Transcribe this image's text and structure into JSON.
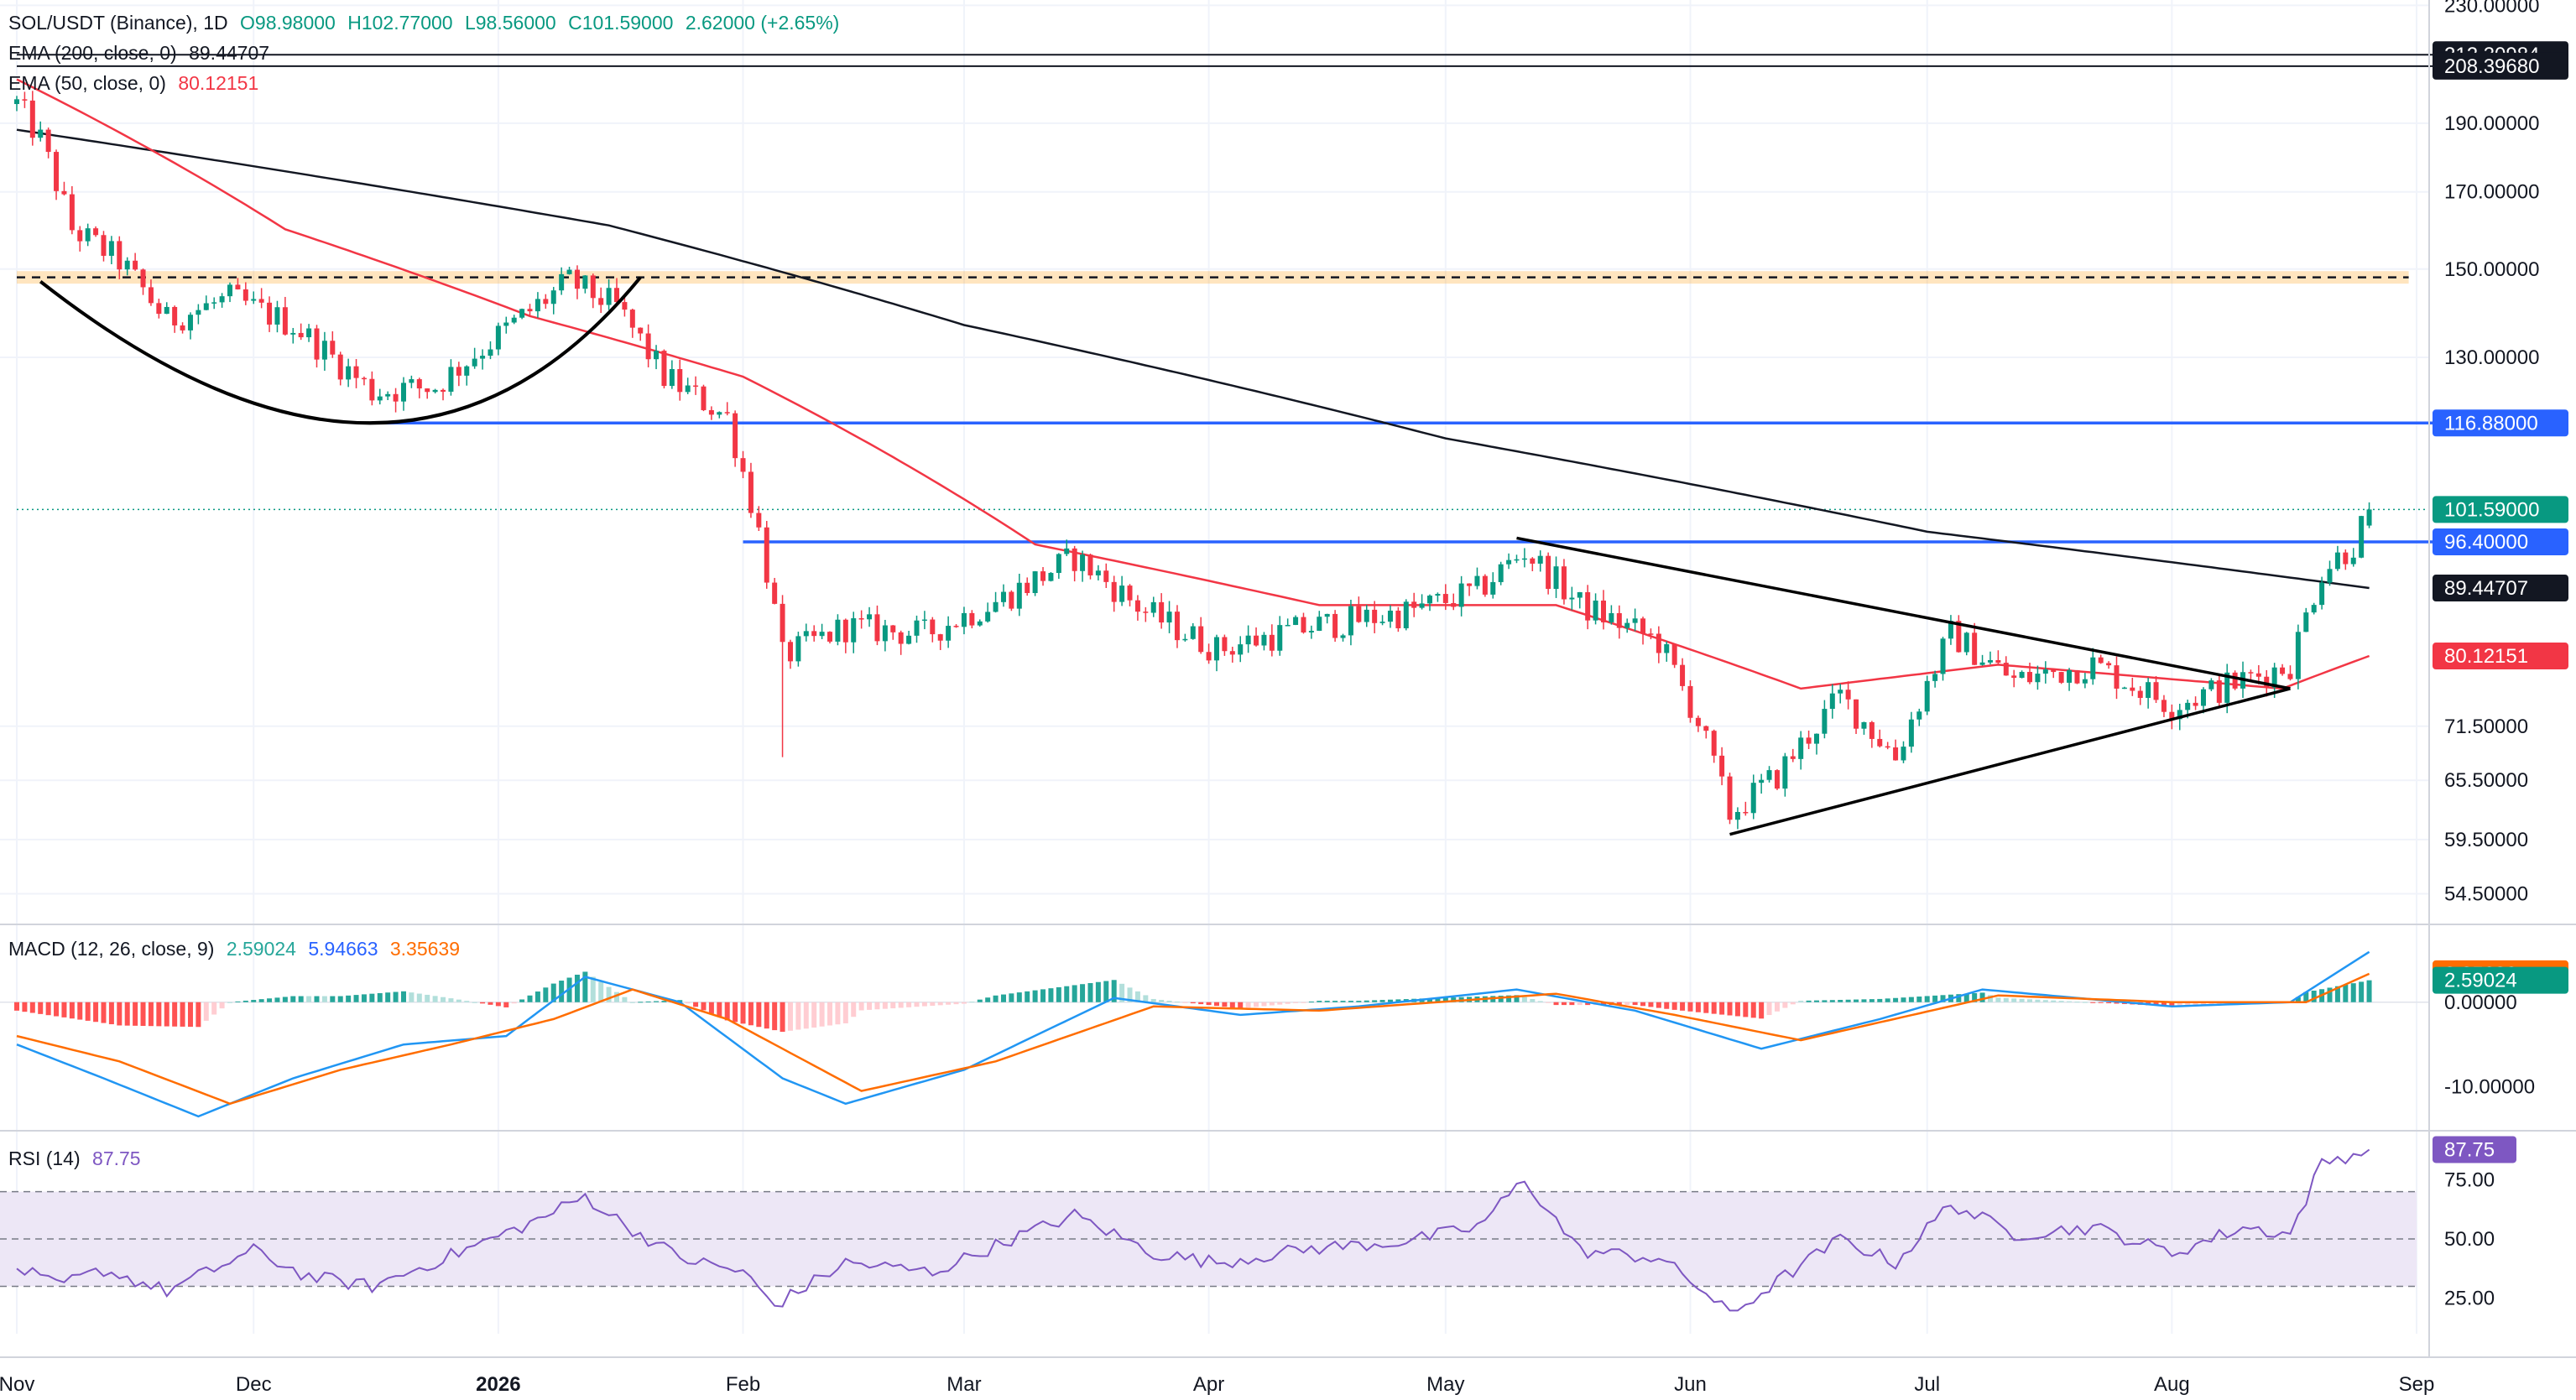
{
  "main_legend": {
    "symbol": "SOL/USDT (Binance), 1D",
    "open": "O98.98000",
    "high": "H102.77000",
    "low": "L98.56000",
    "close": "C101.59000",
    "change": "2.62000 (+2.65%)",
    "ema200_label": "EMA (200, close, 0)",
    "ema200_value": "89.44707",
    "ema50_label": "EMA (50, close, 0)",
    "ema50_value": "80.12151"
  },
  "macd_legend": {
    "label": "MACD (12, 26, close, 9)",
    "histogram": "2.59024",
    "macd": "5.94663",
    "signal": "3.35639"
  },
  "rsi_legend": {
    "label": "RSI (14)",
    "value": "87.75"
  },
  "colors": {
    "up": "#089981",
    "down": "#f23645",
    "ema200": "#131722",
    "ema50": "#f23645",
    "level_line": "#2962ff",
    "resistance_zone": "#ff9800",
    "macd_line": "#2196f3",
    "signal_line": "#ff6d00",
    "rsi_line": "#7e57c2",
    "rsi_band": "#ede7f6"
  },
  "price_axis": {
    "ticks": [
      "230.00000",
      "190.00000",
      "170.00000",
      "150.00000",
      "130.00000",
      "71.50000",
      "65.50000",
      "59.50000",
      "54.50000"
    ],
    "tags": [
      {
        "value": "212.30984",
        "bg": "#131722"
      },
      {
        "value": "208.39680",
        "bg": "#131722"
      },
      {
        "value": "116.88000",
        "bg": "#2962ff"
      },
      {
        "value": "101.59000",
        "bg": "#089981"
      },
      {
        "value": "96.40000",
        "bg": "#2962ff"
      },
      {
        "value": "89.44707",
        "bg": "#131722"
      },
      {
        "value": "80.12151",
        "bg": "#f23645"
      }
    ]
  },
  "macd_axis": {
    "ticks": [
      "0.00000",
      "-10.00000"
    ],
    "tags": [
      {
        "value": "3.35639",
        "bg": "#ff6d00"
      },
      {
        "value": "2.59024",
        "bg": "#089981"
      }
    ]
  },
  "rsi_axis": {
    "ticks": [
      "75.00",
      "50.00",
      "25.00"
    ],
    "tag": {
      "value": "87.75",
      "bg": "#7e57c2"
    }
  },
  "time_axis": {
    "labels": [
      {
        "text": "Nov",
        "bold": false
      },
      {
        "text": "Dec",
        "bold": false
      },
      {
        "text": "2026",
        "bold": true
      },
      {
        "text": "Feb",
        "bold": false
      },
      {
        "text": "Mar",
        "bold": false
      },
      {
        "text": "Apr",
        "bold": false
      },
      {
        "text": "May",
        "bold": false
      },
      {
        "text": "Jun",
        "bold": false
      },
      {
        "text": "Jul",
        "bold": false
      },
      {
        "text": "Aug",
        "bold": false
      },
      {
        "text": "Sep",
        "bold": false
      }
    ]
  },
  "chart_data": [
    {
      "type": "candlestick",
      "title": "SOL/USDT (Binance), 1D",
      "scale": "log",
      "ylim": [
        52,
        232
      ],
      "x_start": "2025-11-01",
      "x_end": "2026-09-01",
      "last": {
        "open": 98.98,
        "high": 102.77,
        "low": 98.56,
        "close": 101.59,
        "change": 2.62,
        "change_pct": 2.65
      },
      "anchors": [
        {
          "date": "2025-11-01",
          "price": 196
        },
        {
          "date": "2025-11-04",
          "price": 185
        },
        {
          "date": "2025-11-08",
          "price": 160
        },
        {
          "date": "2025-11-14",
          "price": 152
        },
        {
          "date": "2025-11-20",
          "price": 138
        },
        {
          "date": "2025-11-28",
          "price": 143
        },
        {
          "date": "2025-12-06",
          "price": 137
        },
        {
          "date": "2025-12-16",
          "price": 123
        },
        {
          "date": "2025-12-24",
          "price": 124
        },
        {
          "date": "2026-01-02",
          "price": 136
        },
        {
          "date": "2026-01-10",
          "price": 147
        },
        {
          "date": "2026-01-16",
          "price": 141
        },
        {
          "date": "2026-01-22",
          "price": 126
        },
        {
          "date": "2026-01-30",
          "price": 118
        },
        {
          "date": "2026-02-03",
          "price": 98
        },
        {
          "date": "2026-02-06",
          "price": 80
        },
        {
          "date": "2026-02-14",
          "price": 84
        },
        {
          "date": "2026-02-24",
          "price": 83
        },
        {
          "date": "2026-03-06",
          "price": 88
        },
        {
          "date": "2026-03-15",
          "price": 94
        },
        {
          "date": "2026-03-24",
          "price": 86
        },
        {
          "date": "2026-04-02",
          "price": 81
        },
        {
          "date": "2026-04-14",
          "price": 84
        },
        {
          "date": "2026-04-26",
          "price": 86
        },
        {
          "date": "2026-05-05",
          "price": 89
        },
        {
          "date": "2026-05-11",
          "price": 95
        },
        {
          "date": "2026-05-18",
          "price": 87
        },
        {
          "date": "2026-05-28",
          "price": 82
        },
        {
          "date": "2026-06-02",
          "price": 72
        },
        {
          "date": "2026-06-06",
          "price": 62
        },
        {
          "date": "2026-06-12",
          "price": 66
        },
        {
          "date": "2026-06-20",
          "price": 75
        },
        {
          "date": "2026-06-27",
          "price": 68
        },
        {
          "date": "2026-07-04",
          "price": 83
        },
        {
          "date": "2026-07-12",
          "price": 77
        },
        {
          "date": "2026-07-22",
          "price": 79
        },
        {
          "date": "2026-08-01",
          "price": 74
        },
        {
          "date": "2026-08-10",
          "price": 77
        },
        {
          "date": "2026-08-16",
          "price": 79
        },
        {
          "date": "2026-08-20",
          "price": 92
        },
        {
          "date": "2026-08-24",
          "price": 96
        },
        {
          "date": "2026-08-26",
          "price": 101.59
        }
      ],
      "ema200_anchors": [
        {
          "date": "2025-11-01",
          "price": 188
        },
        {
          "date": "2026-01-15",
          "price": 161
        },
        {
          "date": "2026-03-01",
          "price": 137
        },
        {
          "date": "2026-05-01",
          "price": 114
        },
        {
          "date": "2026-07-01",
          "price": 98
        },
        {
          "date": "2026-08-26",
          "price": 89.44707
        }
      ],
      "ema50_anchors": [
        {
          "date": "2025-11-01",
          "price": 204
        },
        {
          "date": "2025-12-05",
          "price": 160
        },
        {
          "date": "2026-01-05",
          "price": 139
        },
        {
          "date": "2026-02-01",
          "price": 126
        },
        {
          "date": "2026-03-10",
          "price": 96
        },
        {
          "date": "2026-04-15",
          "price": 87
        },
        {
          "date": "2026-05-15",
          "price": 87
        },
        {
          "date": "2026-06-15",
          "price": 76
        },
        {
          "date": "2026-07-10",
          "price": 79
        },
        {
          "date": "2026-08-15",
          "price": 76
        },
        {
          "date": "2026-08-26",
          "price": 80.12151
        }
      ],
      "horizontal_levels": [
        {
          "price": 116.88,
          "color": "#2962ff",
          "from": "2025-12-16"
        },
        {
          "price": 96.4,
          "color": "#2962ff",
          "from": "2026-02-01"
        },
        {
          "price": 208.3968,
          "color": "#131722",
          "from": "2025-11-01"
        },
        {
          "price": 212.30984,
          "color": "#131722",
          "from": "2025-11-01"
        },
        {
          "price": 101.59,
          "color": "#089981",
          "from": "2025-11-01",
          "dotted": true
        }
      ],
      "resistance_zone": {
        "low": 146.5,
        "high": 149.5,
        "from": "2025-11-01",
        "to": "2026-08-31"
      },
      "rounding_bottom": [
        {
          "date": "2025-11-04",
          "price": 147
        },
        {
          "date": "2025-12-16",
          "price": 116.88
        },
        {
          "date": "2026-01-19",
          "price": 148
        }
      ],
      "triangle": {
        "upper": [
          {
            "date": "2026-05-10",
            "price": 97
          },
          {
            "date": "2026-08-16",
            "price": 76
          }
        ],
        "lower": [
          {
            "date": "2026-06-06",
            "price": 60
          },
          {
            "date": "2026-08-16",
            "price": 76
          }
        ]
      }
    },
    {
      "type": "macd",
      "title": "MACD (12, 26, close, 9)",
      "ylim": [
        -15,
        9
      ],
      "histogram_last": 2.59024,
      "macd_last": 5.94663,
      "signal_last": 3.35639,
      "macd_anchors": [
        {
          "date": "2025-11-01",
          "value": -5
        },
        {
          "date": "2025-11-12",
          "value": -9
        },
        {
          "date": "2025-11-24",
          "value": -13.5
        },
        {
          "date": "2025-12-06",
          "value": -9
        },
        {
          "date": "2025-12-20",
          "value": -5
        },
        {
          "date": "2026-01-02",
          "value": -4
        },
        {
          "date": "2026-01-12",
          "value": 3
        },
        {
          "date": "2026-01-24",
          "value": 0
        },
        {
          "date": "2026-02-06",
          "value": -9
        },
        {
          "date": "2026-02-14",
          "value": -12
        },
        {
          "date": "2026-03-01",
          "value": -8
        },
        {
          "date": "2026-03-20",
          "value": 0.5
        },
        {
          "date": "2026-04-05",
          "value": -1.5
        },
        {
          "date": "2026-04-20",
          "value": -0.5
        },
        {
          "date": "2026-05-10",
          "value": 1.5
        },
        {
          "date": "2026-05-25",
          "value": -1
        },
        {
          "date": "2026-06-10",
          "value": -5.5
        },
        {
          "date": "2026-06-25",
          "value": -2
        },
        {
          "date": "2026-07-08",
          "value": 1.5
        },
        {
          "date": "2026-08-01",
          "value": -0.5
        },
        {
          "date": "2026-08-16",
          "value": 0
        },
        {
          "date": "2026-08-26",
          "value": 5.94663
        }
      ],
      "signal_anchors": [
        {
          "date": "2025-11-01",
          "value": -4
        },
        {
          "date": "2025-11-14",
          "value": -7
        },
        {
          "date": "2025-11-28",
          "value": -12
        },
        {
          "date": "2025-12-12",
          "value": -8
        },
        {
          "date": "2025-12-26",
          "value": -5
        },
        {
          "date": "2026-01-08",
          "value": -2
        },
        {
          "date": "2026-01-18",
          "value": 1.5
        },
        {
          "date": "2026-01-30",
          "value": -2
        },
        {
          "date": "2026-02-16",
          "value": -10.5
        },
        {
          "date": "2026-03-05",
          "value": -7
        },
        {
          "date": "2026-03-25",
          "value": -0.5
        },
        {
          "date": "2026-04-15",
          "value": -1
        },
        {
          "date": "2026-05-15",
          "value": 1
        },
        {
          "date": "2026-05-30",
          "value": -1.5
        },
        {
          "date": "2026-06-15",
          "value": -4.5
        },
        {
          "date": "2026-07-10",
          "value": 0.8
        },
        {
          "date": "2026-08-01",
          "value": 0
        },
        {
          "date": "2026-08-18",
          "value": 0
        },
        {
          "date": "2026-08-26",
          "value": 3.35639
        }
      ]
    },
    {
      "type": "line",
      "title": "RSI (14)",
      "ylim": [
        10,
        95
      ],
      "bands": {
        "upper": 70,
        "middle": 50,
        "lower": 30
      },
      "last": 87.75,
      "anchors": [
        {
          "date": "2025-11-01",
          "value": 38
        },
        {
          "date": "2025-11-06",
          "value": 30
        },
        {
          "date": "2025-11-12",
          "value": 37
        },
        {
          "date": "2025-11-20",
          "value": 28
        },
        {
          "date": "2025-12-01",
          "value": 45
        },
        {
          "date": "2025-12-08",
          "value": 34
        },
        {
          "date": "2025-12-16",
          "value": 30
        },
        {
          "date": "2025-12-26",
          "value": 43
        },
        {
          "date": "2026-01-06",
          "value": 58
        },
        {
          "date": "2026-01-12",
          "value": 68
        },
        {
          "date": "2026-01-17",
          "value": 56
        },
        {
          "date": "2026-01-24",
          "value": 42
        },
        {
          "date": "2026-02-01",
          "value": 36
        },
        {
          "date": "2026-02-05",
          "value": 22
        },
        {
          "date": "2026-02-14",
          "value": 40
        },
        {
          "date": "2026-02-25",
          "value": 36
        },
        {
          "date": "2026-03-07",
          "value": 50
        },
        {
          "date": "2026-03-15",
          "value": 60
        },
        {
          "date": "2026-03-25",
          "value": 44
        },
        {
          "date": "2026-04-02",
          "value": 40
        },
        {
          "date": "2026-04-14",
          "value": 46
        },
        {
          "date": "2026-04-26",
          "value": 49
        },
        {
          "date": "2026-05-05",
          "value": 55
        },
        {
          "date": "2026-05-11",
          "value": 75
        },
        {
          "date": "2026-05-18",
          "value": 45
        },
        {
          "date": "2026-05-28",
          "value": 42
        },
        {
          "date": "2026-06-02",
          "value": 30
        },
        {
          "date": "2026-06-06",
          "value": 18
        },
        {
          "date": "2026-06-12",
          "value": 32
        },
        {
          "date": "2026-06-20",
          "value": 50
        },
        {
          "date": "2026-06-27",
          "value": 40
        },
        {
          "date": "2026-07-04",
          "value": 65
        },
        {
          "date": "2026-07-12",
          "value": 52
        },
        {
          "date": "2026-07-22",
          "value": 55
        },
        {
          "date": "2026-08-01",
          "value": 44
        },
        {
          "date": "2026-08-10",
          "value": 55
        },
        {
          "date": "2026-08-16",
          "value": 52
        },
        {
          "date": "2026-08-20",
          "value": 82
        },
        {
          "date": "2026-08-26",
          "value": 87.75
        }
      ]
    }
  ]
}
